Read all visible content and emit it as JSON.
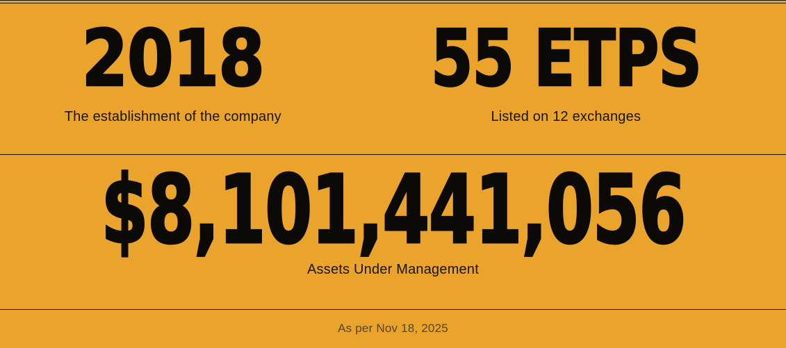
{
  "theme": {
    "background": "#EAA32B",
    "divider": "#17130A",
    "number_color": "#0B0A06",
    "label_color": "#191408",
    "footnote_color": "#50452F"
  },
  "stats": [
    {
      "value": "2018",
      "label": "The establishment of the company"
    },
    {
      "value": "55 ETPS",
      "label": "Listed on 12 exchanges"
    }
  ],
  "aum": {
    "value": "$8,101,441,056",
    "label": "Assets Under Management"
  },
  "footer": {
    "note": "As per Nov 18, 2025"
  }
}
